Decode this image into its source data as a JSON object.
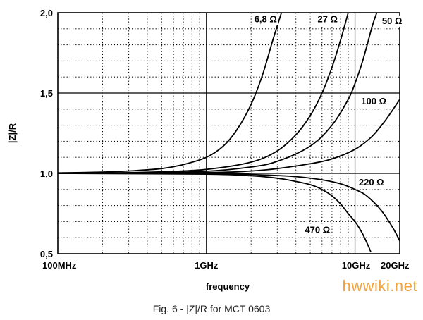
{
  "caption": "Fig. 6 - |Z|/R for MCT 0603",
  "watermark": {
    "text": "hwwiki.net",
    "color": "#f2a23a"
  },
  "chart_data": {
    "type": "line",
    "xlabel": "frequency",
    "ylabel": "|Z|/R",
    "x_scale": "log",
    "x_unit": "GHz",
    "xlim": [
      0.1,
      20
    ],
    "ylim": [
      0.5,
      2.0
    ],
    "x_ticks": [
      {
        "value": 0.1,
        "label": "100MHz"
      },
      {
        "value": 1,
        "label": "1GHz"
      },
      {
        "value": 10,
        "label": "10GHz"
      },
      {
        "value": 20,
        "label": "20GHz"
      }
    ],
    "y_ticks": [
      {
        "value": 0.5,
        "label": "0,5"
      },
      {
        "value": 1.0,
        "label": "1,0"
      },
      {
        "value": 1.5,
        "label": "1,5"
      },
      {
        "value": 2.0,
        "label": "2,0"
      }
    ],
    "grid": true,
    "series": [
      {
        "name": "6,8 Ω",
        "x": [
          0.1,
          0.2,
          0.3,
          0.5,
          0.7,
          1.0,
          1.3,
          1.6,
          2.0,
          2.4,
          2.8,
          3.2
        ],
        "y": [
          1.003,
          1.008,
          1.015,
          1.03,
          1.055,
          1.1,
          1.17,
          1.27,
          1.43,
          1.62,
          1.83,
          2.0
        ],
        "label_at": [
          2.1,
          1.94
        ]
      },
      {
        "name": "27 Ω",
        "x": [
          0.1,
          0.3,
          0.5,
          1.0,
          2.0,
          3.0,
          4.0,
          5.0,
          6.0,
          7.0,
          8.0,
          9.0
        ],
        "y": [
          1.0,
          1.005,
          1.01,
          1.025,
          1.07,
          1.14,
          1.24,
          1.36,
          1.5,
          1.66,
          1.83,
          2.0
        ],
        "label_at": [
          5.6,
          1.94
        ]
      },
      {
        "name": "50 Ω",
        "x": [
          0.1,
          0.3,
          1.0,
          2.0,
          3.0,
          5.0,
          7.0,
          9.0,
          10.0,
          11.0,
          12.0,
          13.0,
          14.0
        ],
        "y": [
          1.0,
          1.002,
          1.013,
          1.04,
          1.075,
          1.17,
          1.3,
          1.46,
          1.56,
          1.67,
          1.79,
          1.91,
          2.0
        ],
        "label_at": [
          15.2,
          1.93
        ]
      },
      {
        "name": "100 Ω",
        "x": [
          0.1,
          1.0,
          2.0,
          3.0,
          5.0,
          7.0,
          10.0,
          13.0,
          16.0,
          20.0
        ],
        "y": [
          1.0,
          1.005,
          1.015,
          1.03,
          1.06,
          1.09,
          1.15,
          1.23,
          1.33,
          1.46
        ],
        "label_at": [
          11.0,
          1.43
        ]
      },
      {
        "name": "220 Ω",
        "x": [
          0.1,
          1.0,
          2.0,
          4.0,
          6.0,
          8.0,
          10.0,
          12.0,
          15.0,
          18.0,
          20.0
        ],
        "y": [
          1.0,
          0.998,
          0.993,
          0.98,
          0.96,
          0.935,
          0.9,
          0.86,
          0.77,
          0.66,
          0.58
        ],
        "label_at": [
          10.6,
          0.925
        ]
      },
      {
        "name": "470 Ω",
        "x": [
          0.1,
          1.0,
          2.0,
          3.0,
          4.0,
          5.0,
          6.0,
          7.0,
          8.0,
          9.0,
          10.0,
          11.0,
          12.0,
          12.8
        ],
        "y": [
          1.0,
          0.995,
          0.985,
          0.97,
          0.95,
          0.93,
          0.9,
          0.86,
          0.81,
          0.75,
          0.7,
          0.64,
          0.57,
          0.51
        ],
        "label_at": [
          4.6,
          0.63
        ]
      }
    ]
  }
}
